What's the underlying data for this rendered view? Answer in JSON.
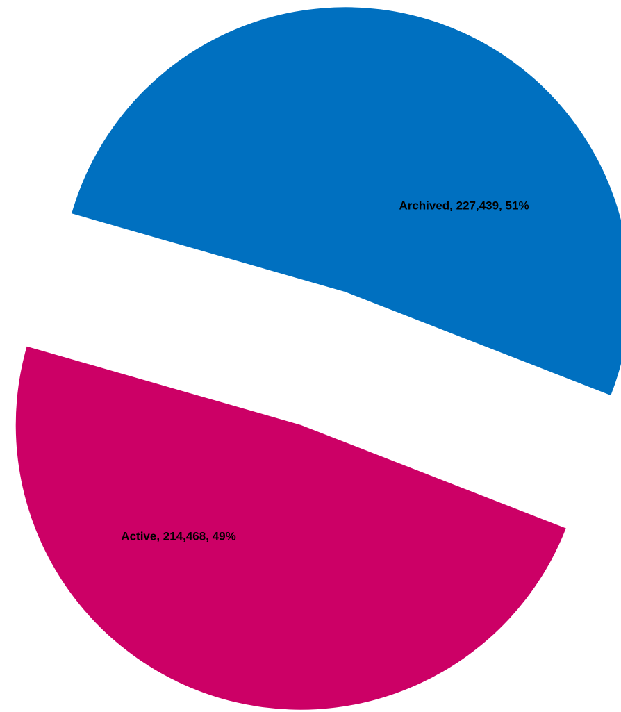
{
  "chart_data": {
    "type": "pie",
    "categories": [
      "Archived",
      "Active"
    ],
    "values": [
      227439,
      214468
    ],
    "value_labels": [
      "Archived, 227,439, 51%",
      "Active, 214,468, 49%"
    ],
    "colors": [
      "#0070c0",
      "#cc0066"
    ]
  }
}
